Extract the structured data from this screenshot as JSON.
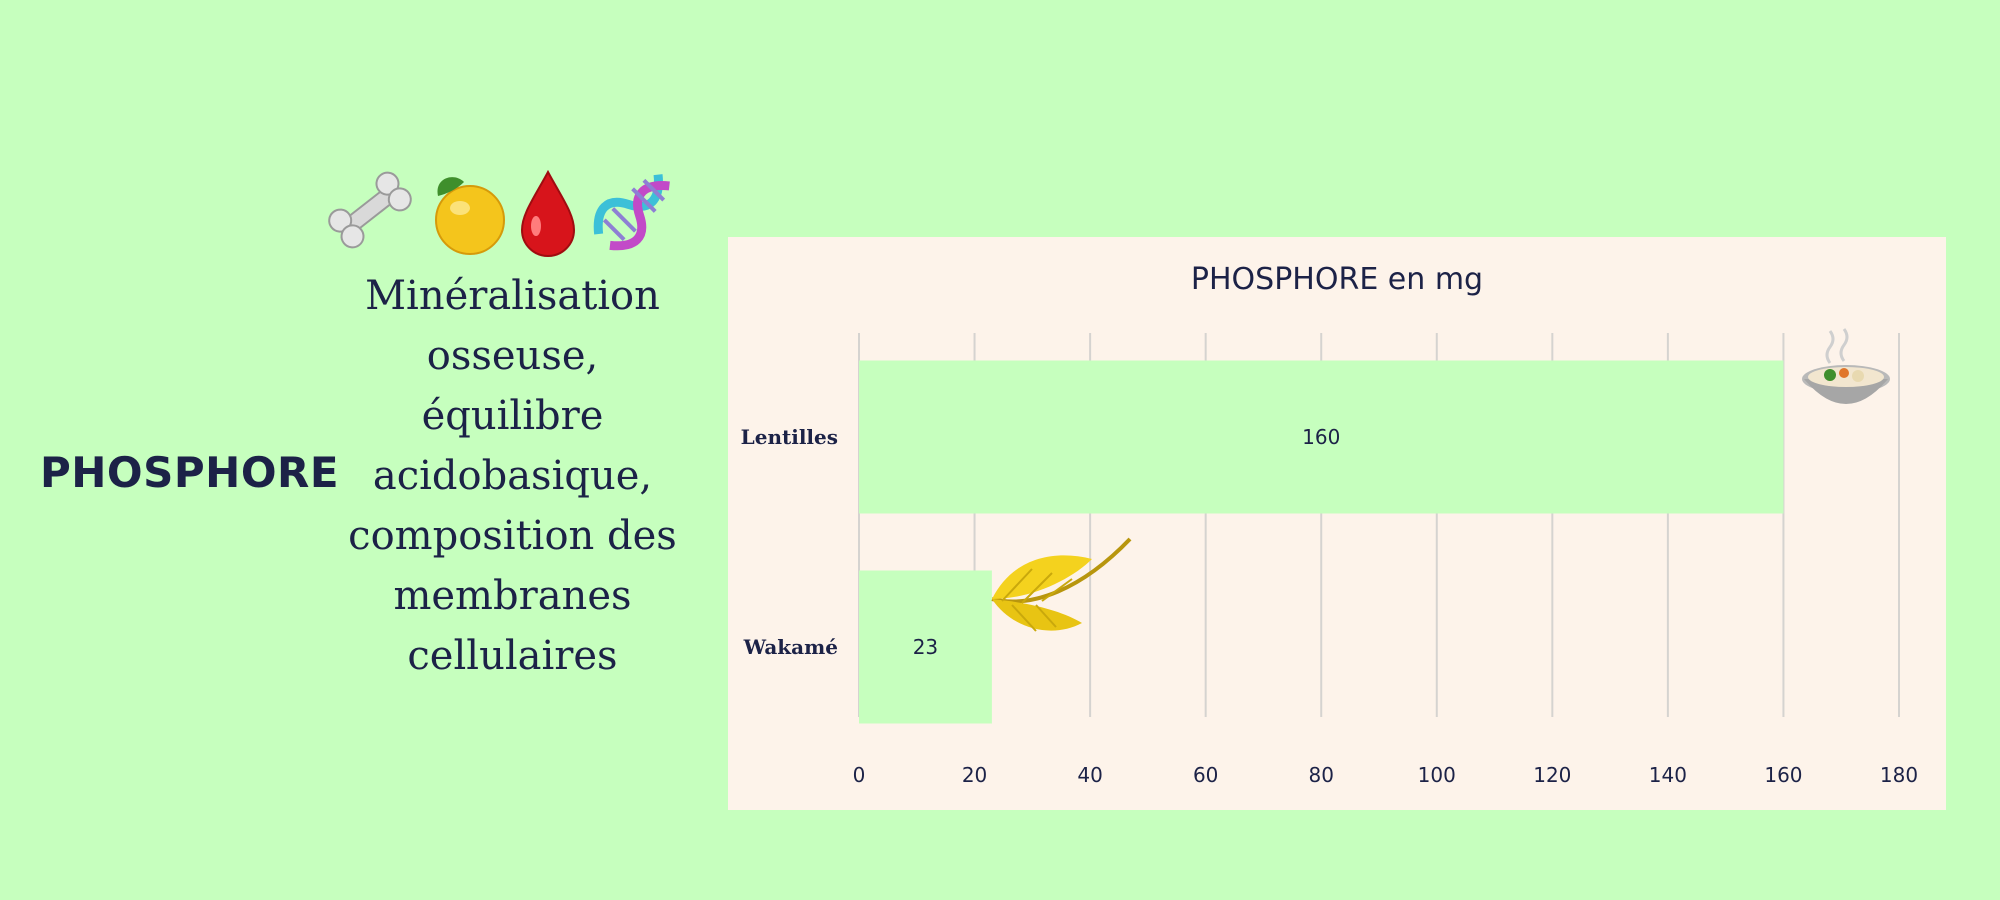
{
  "left_panel": {
    "nutrient": "PHOSPHORE",
    "description": "Minéralisation osseuse, équilibre acidobasique, composition des membranes cellulaires",
    "icons": [
      "bone-icon",
      "lemon-icon",
      "blood-drop-icon",
      "dna-icon"
    ]
  },
  "colors": {
    "background": "#c6ffbe",
    "card": "#fdf3ea",
    "bar": "#c6ffbe",
    "text": "#1c2247",
    "grid": "#d5d3d0"
  },
  "chart_data": {
    "type": "bar",
    "orientation": "horizontal",
    "title": "PHOSPHORE en mg",
    "categories": [
      "Lentilles",
      "Wakamé"
    ],
    "values": [
      160,
      23
    ],
    "data_labels": [
      "160",
      "23"
    ],
    "xlim": [
      0,
      180
    ],
    "xticks": [
      "0",
      "20",
      "40",
      "60",
      "80",
      "100",
      "120",
      "140",
      "160",
      "180"
    ],
    "grid": true,
    "decorations": [
      "soup-bowl-icon",
      "seaweed-icon"
    ]
  }
}
